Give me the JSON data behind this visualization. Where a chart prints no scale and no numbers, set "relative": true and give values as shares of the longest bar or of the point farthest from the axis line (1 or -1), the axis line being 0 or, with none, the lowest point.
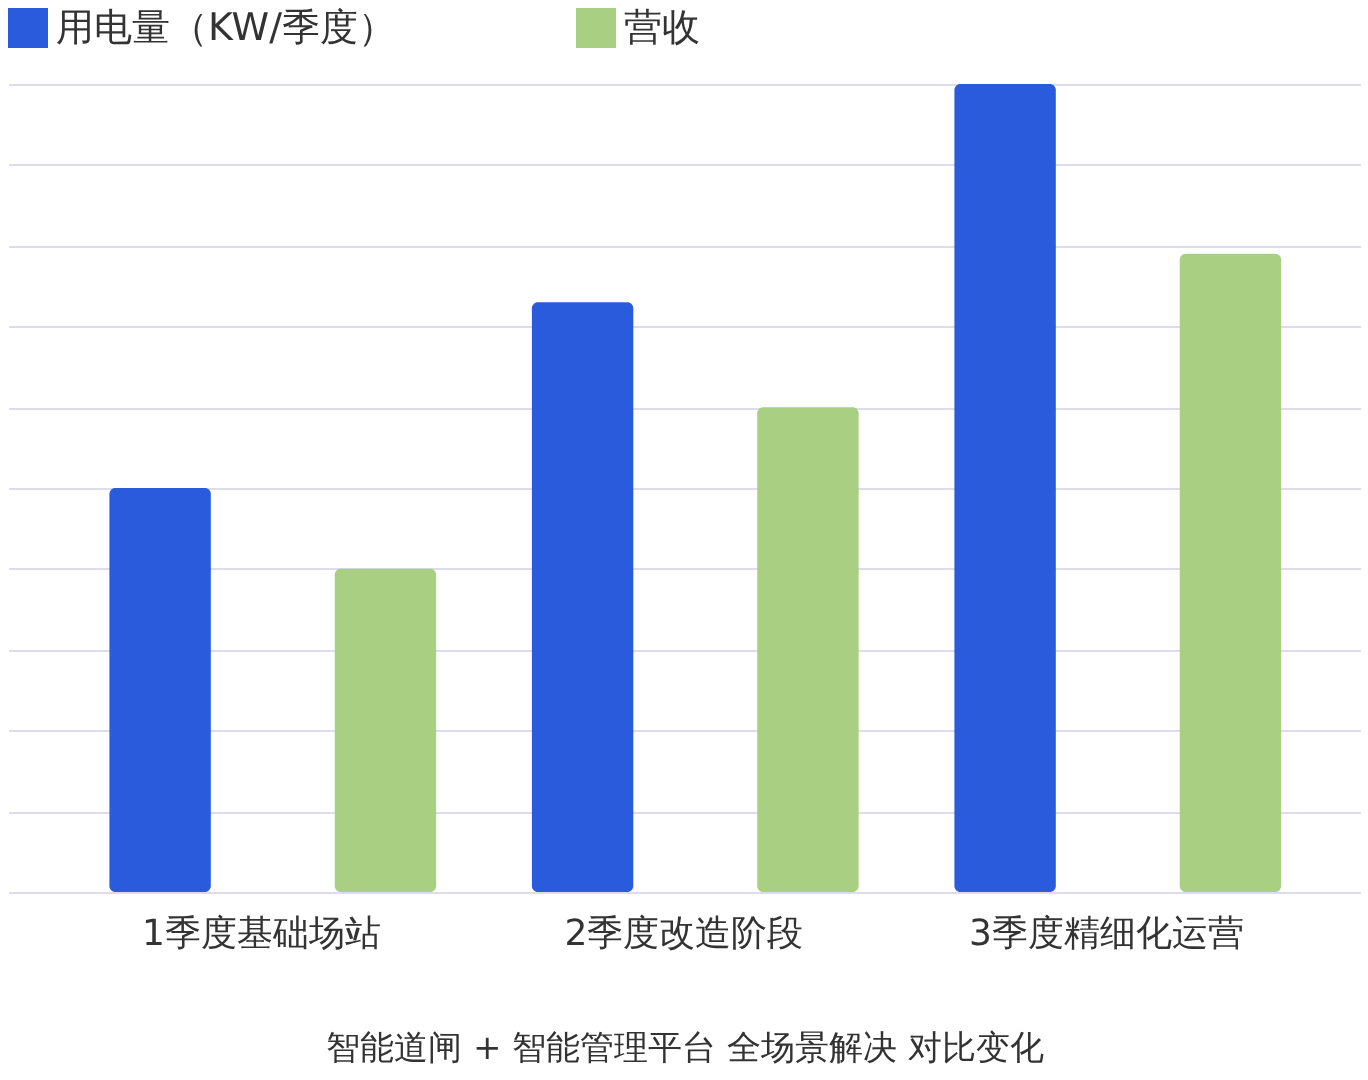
{
  "chart_data": {
    "type": "bar",
    "xlabel": "智能道闸 + 智能管理平台 全场景解决 对比变化",
    "categories": [
      "1季度基础场站",
      "2季度改造阶段",
      "3季度精细化运营"
    ],
    "series": [
      {
        "name": "用电量（KW/季度）",
        "color": "#2a5bdc",
        "values": [
          0.5,
          0.73,
          1.0
        ]
      },
      {
        "name": "营收",
        "color": "#a8cf82",
        "values": [
          0.4,
          0.6,
          0.79
        ]
      }
    ],
    "relative": true,
    "grid": "y",
    "legend": "top"
  }
}
